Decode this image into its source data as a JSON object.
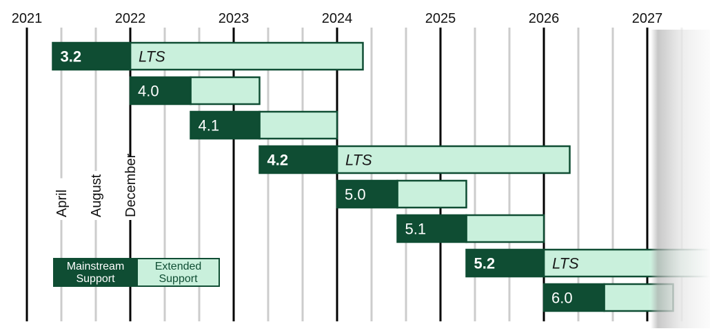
{
  "chart_data": {
    "type": "gantt",
    "years": [
      "2021",
      "2022",
      "2023",
      "2024",
      "2025",
      "2026",
      "2027"
    ],
    "month_labels": [
      "April",
      "August",
      "December"
    ],
    "releases": [
      {
        "version": "3.2",
        "mainstream_start": "2021-04",
        "mainstream_end": "2022-01",
        "extended_end": "2024-04",
        "lts": true
      },
      {
        "version": "4.0",
        "mainstream_start": "2022-01",
        "mainstream_end": "2022-08",
        "extended_end": "2023-04",
        "lts": false
      },
      {
        "version": "4.1",
        "mainstream_start": "2022-08",
        "mainstream_end": "2023-04",
        "extended_end": "2024-01",
        "lts": false
      },
      {
        "version": "4.2",
        "mainstream_start": "2023-04",
        "mainstream_end": "2024-01",
        "extended_end": "2026-04",
        "lts": true
      },
      {
        "version": "5.0",
        "mainstream_start": "2024-01",
        "mainstream_end": "2024-08",
        "extended_end": "2025-04",
        "lts": false
      },
      {
        "version": "5.1",
        "mainstream_start": "2024-08",
        "mainstream_end": "2025-04",
        "extended_end": "2026-01",
        "lts": false
      },
      {
        "version": "5.2",
        "mainstream_start": "2025-04",
        "mainstream_end": "2026-01",
        "extended_end": "2028-04",
        "lts": true
      },
      {
        "version": "6.0",
        "mainstream_start": "2026-01",
        "mainstream_end": "2026-08",
        "extended_end": "2027-04",
        "lts": false
      }
    ],
    "lts_label": "LTS",
    "legend": {
      "mainstream": [
        "Mainstream",
        "Support"
      ],
      "extended": [
        "Extended",
        "Support"
      ]
    },
    "colors": {
      "mainstream": "#0f4d33",
      "extended": "#c9f0dc",
      "border": "#0f4d33",
      "year_line": "#000000",
      "month_line": "#cccccc"
    }
  }
}
